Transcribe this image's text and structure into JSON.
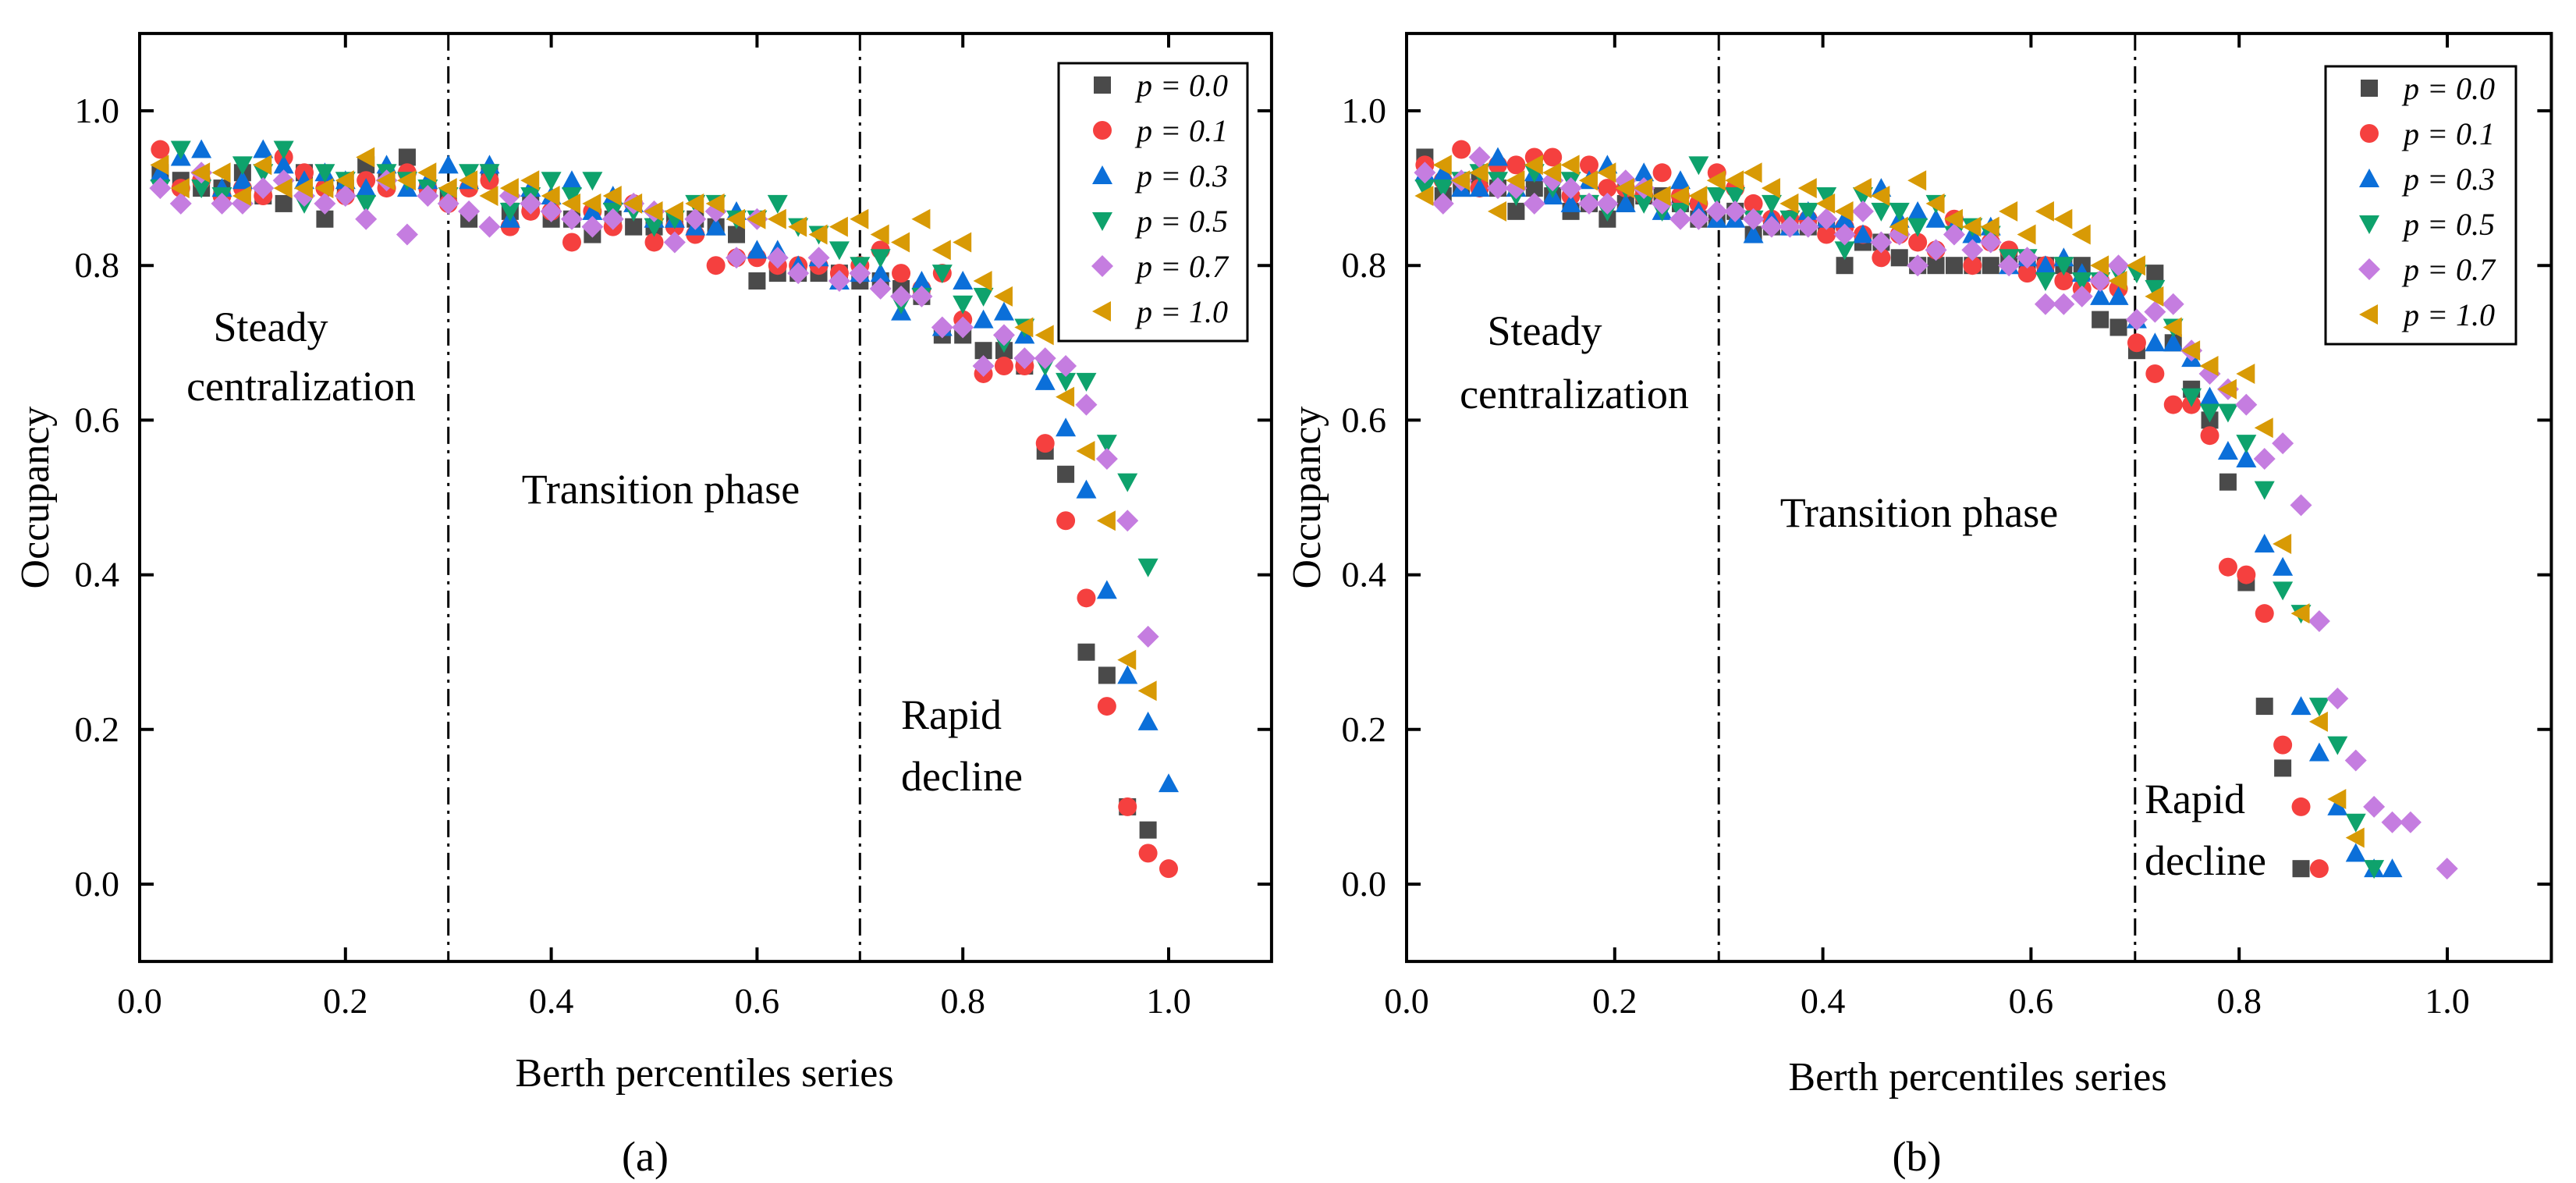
{
  "colors": {
    "p0": "#4a4a4a",
    "p1": "#f5403f",
    "p3": "#0b6fd9",
    "p5": "#0ea26c",
    "p7": "#c57de0",
    "p10": "#d89a05"
  },
  "chart_data": [
    {
      "type": "scatter",
      "panel_label": "(a)",
      "xlabel": "Berth percentiles series",
      "ylabel": "Occupancy",
      "xlim": [
        0.0,
        1.1
      ],
      "ylim": [
        -0.1,
        1.1
      ],
      "xticks": [
        "0.0",
        "0.2",
        "0.4",
        "0.6",
        "0.8",
        "1.0"
      ],
      "yticks": [
        "0.0",
        "0.2",
        "0.4",
        "0.6",
        "0.8",
        "1.0"
      ],
      "vlines": [
        0.3,
        0.7
      ],
      "annotations": [
        "Steady",
        "centralization",
        "Transition phase",
        "Rapid",
        "decline"
      ],
      "legend_position": "top-right",
      "x_start": 0.02,
      "x_step": 0.02,
      "series": [
        {
          "name": "p = 0.0",
          "key": "p0",
          "marker": "square",
          "y": [
            0.92,
            0.91,
            0.9,
            0.9,
            0.92,
            0.89,
            0.88,
            0.92,
            0.86,
            0.9,
            0.93,
            0.91,
            0.94,
            0.9,
            0.89,
            0.86,
            0.92,
            0.87,
            0.88,
            0.86,
            0.86,
            0.84,
            0.86,
            0.85,
            0.85,
            0.86,
            0.86,
            0.85,
            0.84,
            0.78,
            0.79,
            0.79,
            0.79,
            0.79,
            0.78,
            0.78,
            0.77,
            0.76,
            0.71,
            0.71,
            0.69,
            0.69,
            0.67,
            0.56,
            0.53,
            0.3,
            0.27,
            0.1,
            0.07,
            null
          ]
        },
        {
          "name": "p = 0.1",
          "key": "p1",
          "marker": "circle",
          "y": [
            0.95,
            0.9,
            0.91,
            0.89,
            0.9,
            0.89,
            0.94,
            0.92,
            0.9,
            0.89,
            0.91,
            0.9,
            0.92,
            0.9,
            0.88,
            0.9,
            0.91,
            0.85,
            0.87,
            0.87,
            0.83,
            0.87,
            0.85,
            0.88,
            0.83,
            0.85,
            0.84,
            0.8,
            0.81,
            0.81,
            0.8,
            0.8,
            0.8,
            0.79,
            0.8,
            0.82,
            0.79,
            0.77,
            0.79,
            0.73,
            0.66,
            0.67,
            0.67,
            0.57,
            0.47,
            0.37,
            0.23,
            0.1,
            0.04,
            0.02
          ]
        },
        {
          "name": "p = 0.3",
          "key": "p3",
          "marker": "triangle-up",
          "y": [
            0.92,
            0.94,
            0.95,
            0.9,
            0.91,
            0.95,
            0.93,
            0.91,
            0.92,
            0.91,
            0.9,
            0.93,
            0.9,
            0.91,
            0.93,
            0.91,
            0.93,
            0.86,
            0.9,
            0.89,
            0.91,
            0.87,
            0.89,
            0.88,
            0.86,
            0.86,
            0.85,
            0.85,
            0.87,
            0.82,
            0.82,
            0.8,
            0.81,
            0.78,
            0.79,
            0.79,
            0.74,
            0.78,
            0.72,
            0.78,
            0.73,
            0.74,
            0.71,
            0.65,
            0.59,
            0.51,
            0.38,
            0.27,
            0.21,
            0.13
          ]
        },
        {
          "name": "p = 0.5",
          "key": "p5",
          "marker": "triangle-down",
          "y": [
            0.9,
            0.95,
            0.9,
            0.89,
            0.93,
            0.92,
            0.95,
            0.88,
            0.92,
            0.91,
            0.88,
            0.92,
            0.91,
            0.9,
            0.89,
            0.92,
            0.92,
            0.87,
            0.89,
            0.91,
            0.89,
            0.91,
            0.87,
            0.87,
            0.85,
            0.86,
            0.88,
            0.88,
            0.86,
            0.86,
            0.88,
            0.85,
            0.84,
            0.82,
            0.8,
            0.81,
            0.75,
            0.76,
            0.79,
            0.75,
            0.76,
            0.7,
            0.72,
            0.67,
            0.65,
            0.65,
            0.57,
            0.52,
            0.41,
            null
          ]
        },
        {
          "name": "p = 0.7",
          "key": "p7",
          "marker": "diamond",
          "y": [
            0.9,
            0.88,
            0.92,
            0.88,
            0.88,
            0.9,
            0.91,
            0.89,
            0.88,
            0.89,
            0.86,
            0.91,
            0.84,
            0.89,
            0.88,
            0.87,
            0.85,
            0.89,
            0.88,
            0.87,
            0.86,
            0.85,
            0.86,
            0.88,
            0.87,
            0.83,
            0.86,
            0.87,
            0.81,
            0.86,
            0.81,
            0.79,
            0.81,
            0.78,
            0.79,
            0.77,
            0.76,
            0.76,
            0.72,
            0.72,
            0.67,
            0.71,
            0.68,
            0.68,
            0.67,
            0.62,
            0.55,
            0.47,
            0.32,
            null
          ]
        },
        {
          "name": "p = 1.0",
          "key": "p10",
          "marker": "triangle-left",
          "y": [
            0.93,
            0.9,
            0.92,
            0.92,
            0.89,
            0.93,
            0.9,
            0.9,
            0.9,
            0.91,
            0.94,
            0.91,
            0.91,
            0.92,
            0.9,
            0.91,
            0.89,
            0.9,
            0.91,
            0.89,
            0.88,
            0.88,
            0.89,
            0.88,
            0.87,
            0.87,
            0.88,
            0.88,
            0.86,
            0.86,
            0.86,
            0.85,
            0.84,
            0.85,
            0.86,
            0.84,
            0.83,
            0.86,
            0.82,
            0.83,
            0.78,
            0.76,
            0.72,
            0.71,
            0.63,
            0.56,
            0.47,
            0.29,
            0.25,
            null
          ]
        }
      ]
    },
    {
      "type": "scatter",
      "panel_label": "(b)",
      "xlabel": "Berth percentiles series",
      "ylabel": "Occupancy",
      "xlim": [
        0.0,
        1.1
      ],
      "ylim": [
        -0.1,
        1.1
      ],
      "xticks": [
        "0.0",
        "0.2",
        "0.4",
        "0.6",
        "0.8",
        "1.0"
      ],
      "yticks": [
        "0.0",
        "0.2",
        "0.4",
        "0.6",
        "0.8",
        "1.0"
      ],
      "vlines": [
        0.3,
        0.7
      ],
      "annotations": [
        "Steady",
        "centralization",
        "Transition phase",
        "Rapid",
        "decline"
      ],
      "legend_position": "top-right",
      "x_start": 0.01754,
      "x_step": 0.01754,
      "series": [
        {
          "name": "p = 0.0",
          "key": "p0",
          "marker": "square",
          "y": [
            0.94,
            0.89,
            0.9,
            0.91,
            0.9,
            0.87,
            0.9,
            0.89,
            0.87,
            0.88,
            0.86,
            0.88,
            0.89,
            0.89,
            0.88,
            0.86,
            0.86,
            0.87,
            0.84,
            0.85,
            0.85,
            0.85,
            0.85,
            0.8,
            0.83,
            0.83,
            0.81,
            0.8,
            0.8,
            0.8,
            0.8,
            0.8,
            0.81,
            0.8,
            0.8,
            0.8,
            0.8,
            0.73,
            0.72,
            0.69,
            0.79,
            0.7,
            0.64,
            0.6,
            0.52,
            0.39,
            0.23,
            0.15,
            0.02
          ]
        },
        {
          "name": "p = 0.1",
          "key": "p1",
          "marker": "circle",
          "y": [
            0.93,
            0.91,
            0.95,
            0.9,
            0.93,
            0.93,
            0.94,
            0.94,
            0.89,
            0.93,
            0.9,
            0.9,
            0.89,
            0.92,
            0.89,
            0.88,
            0.92,
            0.9,
            0.88,
            0.86,
            0.86,
            0.86,
            0.84,
            0.85,
            0.84,
            0.81,
            0.84,
            0.83,
            0.82,
            0.86,
            0.8,
            0.83,
            0.82,
            0.79,
            0.8,
            0.78,
            0.77,
            0.78,
            0.77,
            0.7,
            0.66,
            0.62,
            0.62,
            0.58,
            0.41,
            0.4,
            0.35,
            0.18,
            0.1,
            0.02
          ]
        },
        {
          "name": "p = 0.3",
          "key": "p3",
          "marker": "triangle-up",
          "y": [
            0.92,
            0.92,
            0.9,
            0.9,
            0.94,
            0.9,
            0.92,
            0.89,
            0.88,
            0.91,
            0.93,
            0.88,
            0.92,
            0.87,
            0.91,
            0.87,
            0.86,
            0.86,
            0.84,
            0.86,
            0.85,
            0.87,
            0.86,
            0.86,
            0.84,
            0.9,
            0.86,
            0.87,
            0.86,
            0.85,
            0.84,
            0.85,
            0.8,
            0.81,
            0.8,
            0.81,
            0.79,
            0.76,
            0.76,
            0.73,
            0.7,
            0.7,
            0.68,
            0.63,
            0.56,
            0.55,
            0.44,
            0.41,
            0.23,
            0.17,
            0.1,
            0.04,
            0.02,
            0.02
          ]
        },
        {
          "name": "p = 0.5",
          "key": "p5",
          "marker": "triangle-down",
          "y": [
            0.9,
            0.9,
            0.91,
            0.92,
            0.91,
            0.89,
            0.92,
            0.9,
            0.91,
            0.88,
            0.87,
            0.9,
            0.88,
            0.87,
            0.87,
            0.93,
            0.89,
            0.89,
            0.86,
            0.88,
            0.86,
            0.87,
            0.89,
            0.82,
            0.89,
            0.87,
            0.87,
            0.85,
            0.88,
            0.84,
            0.85,
            0.84,
            0.81,
            0.81,
            0.78,
            0.8,
            0.78,
            0.78,
            0.79,
            0.79,
            0.77,
            0.72,
            0.63,
            0.61,
            0.61,
            0.57,
            0.51,
            0.38,
            0.35,
            0.23,
            0.18,
            0.08,
            0.02
          ]
        },
        {
          "name": "p = 0.7",
          "key": "p7",
          "marker": "diamond",
          "y": [
            0.92,
            0.88,
            0.91,
            0.94,
            0.9,
            0.9,
            0.88,
            0.91,
            0.9,
            0.88,
            0.88,
            0.91,
            0.9,
            0.88,
            0.86,
            0.86,
            0.87,
            0.87,
            0.86,
            0.85,
            0.85,
            0.85,
            0.86,
            0.84,
            0.87,
            0.83,
            0.84,
            0.8,
            0.82,
            0.84,
            0.82,
            0.83,
            0.8,
            0.81,
            0.75,
            0.75,
            0.76,
            0.78,
            0.8,
            0.73,
            0.74,
            0.75,
            0.69,
            0.66,
            0.64,
            0.62,
            0.55,
            0.57,
            0.49,
            0.34,
            0.24,
            0.16,
            0.1,
            0.08,
            0.08,
            null,
            0.02
          ]
        },
        {
          "name": "p = 1.0",
          "key": "p10",
          "marker": "triangle-left",
          "y": [
            0.89,
            0.93,
            0.91,
            0.92,
            0.87,
            0.91,
            0.93,
            0.92,
            0.93,
            0.91,
            0.92,
            0.9,
            0.9,
            0.89,
            0.89,
            0.89,
            0.91,
            0.91,
            0.92,
            0.9,
            0.88,
            0.9,
            0.88,
            0.87,
            0.9,
            0.89,
            0.85,
            0.91,
            0.88,
            0.86,
            0.85,
            0.85,
            0.87,
            0.84,
            0.87,
            0.86,
            0.84,
            0.8,
            0.78,
            0.8,
            0.76,
            0.72,
            0.69,
            0.67,
            0.64,
            0.66,
            0.59,
            0.44,
            0.35,
            0.21,
            0.11,
            0.06
          ]
        }
      ]
    }
  ]
}
